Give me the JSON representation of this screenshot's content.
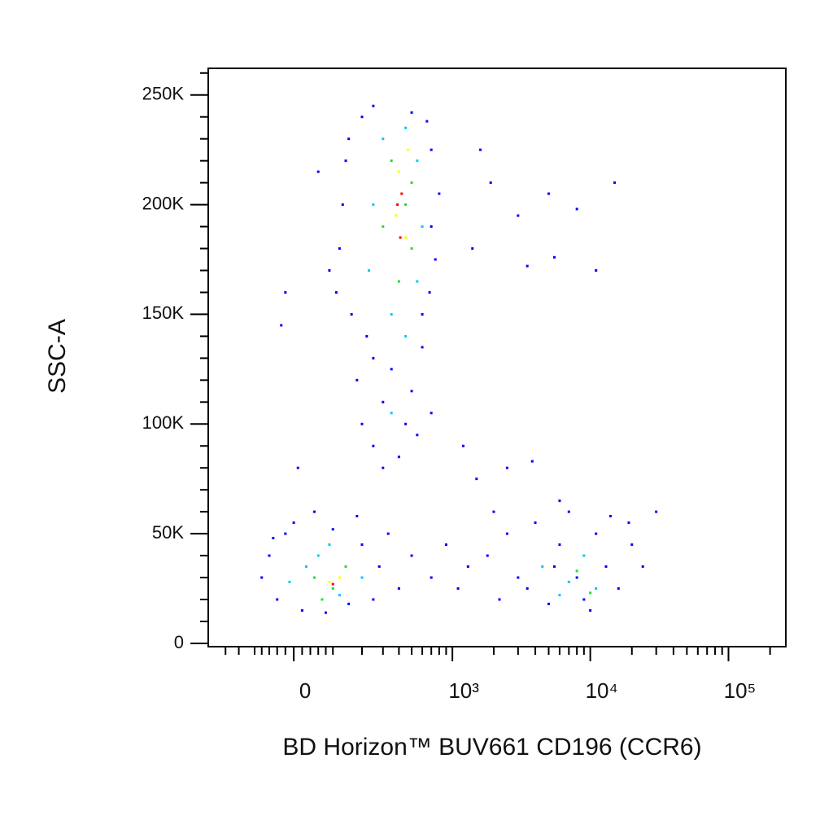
{
  "chart_data": {
    "type": "scatter",
    "x_label": "BD Horizon™ BUV661 CD196 (CCR6)",
    "y_label": "SSC-A",
    "xscale": "biexponential",
    "xlim": [
      -280,
      260000
    ],
    "xticks": [
      0,
      {
        "value": 1000,
        "label": "10³"
      },
      {
        "value": 10000,
        "label": "10⁴"
      },
      {
        "value": 100000,
        "label": "10⁵"
      }
    ],
    "xminorticks": [
      -200,
      -150,
      -100,
      -80,
      -60,
      -40,
      -20,
      20,
      40,
      60,
      80,
      100,
      200,
      300,
      400,
      500,
      600,
      700,
      800,
      900,
      2000,
      3000,
      4000,
      5000,
      6000,
      7000,
      8000,
      9000,
      20000,
      30000,
      40000,
      50000,
      60000,
      70000,
      80000,
      90000,
      200000
    ],
    "ylim": [
      -1500,
      262144
    ],
    "yticks": [
      0,
      {
        "value": 50000,
        "label": "50K"
      },
      {
        "value": 100000,
        "label": "100K"
      },
      {
        "value": 150000,
        "label": "150K"
      },
      {
        "value": 200000,
        "label": "200K"
      },
      {
        "value": 250000,
        "label": "250K"
      }
    ],
    "yminorticks": [
      10000,
      20000,
      30000,
      40000,
      60000,
      70000,
      80000,
      90000,
      110000,
      120000,
      130000,
      140000,
      160000,
      170000,
      180000,
      190000,
      210000,
      220000,
      230000,
      240000,
      260000
    ],
    "series": [
      {
        "color": "#0000ff",
        "x": [
          150,
          200,
          250,
          500,
          650,
          700,
          130,
          120,
          110,
          160,
          700,
          750,
          680,
          220,
          250,
          600,
          180,
          300,
          450,
          700,
          250,
          400,
          550,
          200,
          300,
          600,
          140,
          800,
          90,
          350,
          500,
          1600,
          1900,
          3000,
          5000,
          8000,
          15000,
          11000,
          3500,
          5500,
          1400,
          60,
          -20,
          -30,
          10,
          1200,
          2500,
          3800,
          2000,
          1500,
          30000,
          6000,
          -60,
          -40,
          -20,
          0,
          20,
          50,
          100,
          150,
          200,
          250,
          280,
          -80,
          330,
          400,
          500,
          700,
          900,
          1100,
          1300,
          -50,
          80,
          180,
          1800,
          2200,
          2500,
          3000,
          4000,
          5000,
          6000,
          7000,
          9000,
          11000,
          13000,
          16000,
          20000,
          24000,
          3500,
          8000,
          14000,
          19000,
          10000,
          5500
        ],
        "y": [
          230000,
          240000,
          245000,
          242000,
          238000,
          225000,
          200000,
          180000,
          160000,
          150000,
          190000,
          175000,
          160000,
          140000,
          130000,
          135000,
          120000,
          110000,
          100000,
          105000,
          90000,
          85000,
          95000,
          100000,
          80000,
          150000,
          220000,
          205000,
          170000,
          125000,
          115000,
          225000,
          210000,
          195000,
          205000,
          198000,
          210000,
          170000,
          172000,
          176000,
          180000,
          215000,
          160000,
          145000,
          80000,
          90000,
          80000,
          83000,
          60000,
          75000,
          60000,
          65000,
          40000,
          20000,
          50000,
          55000,
          15000,
          60000,
          52000,
          18000,
          45000,
          20000,
          35000,
          30000,
          50000,
          25000,
          40000,
          30000,
          45000,
          25000,
          35000,
          48000,
          14000,
          58000,
          40000,
          20000,
          50000,
          30000,
          55000,
          18000,
          45000,
          60000,
          20000,
          50000,
          35000,
          25000,
          45000,
          35000,
          25000,
          30000,
          58000,
          55000,
          15000,
          35000
        ]
      },
      {
        "color": "#00c8ff",
        "x": [
          300,
          450,
          550,
          250,
          600,
          230,
          550,
          350,
          450,
          350,
          30,
          60,
          120,
          200,
          -10,
          90,
          4500,
          7000,
          9000,
          11000,
          6000
        ],
        "y": [
          230000,
          235000,
          220000,
          200000,
          190000,
          170000,
          165000,
          150000,
          140000,
          105000,
          35000,
          40000,
          22000,
          30000,
          28000,
          45000,
          35000,
          28000,
          40000,
          25000,
          22000
        ]
      },
      {
        "color": "#22e022",
        "x": [
          350,
          500,
          300,
          500,
          400,
          450,
          50,
          100,
          140,
          70,
          10000,
          8000
        ],
        "y": [
          220000,
          210000,
          190000,
          180000,
          165000,
          200000,
          30000,
          25000,
          35000,
          20000,
          23000,
          33000
        ]
      },
      {
        "color": "#ffff00",
        "x": [
          400,
          380,
          450,
          470,
          90,
          120
        ],
        "y": [
          215000,
          195000,
          185000,
          225000,
          28000,
          30000
        ]
      },
      {
        "color": "#ff0000",
        "x": [
          420,
          390,
          410,
          100
        ],
        "y": [
          205000,
          200000,
          185000,
          27000
        ]
      }
    ]
  }
}
